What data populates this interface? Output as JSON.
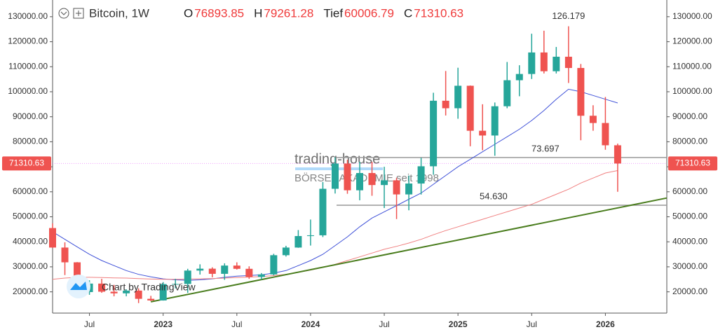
{
  "chart_data": {
    "type": "candlestick",
    "symbol": "Bitcoin, 1W",
    "header": [
      {
        "label": "O",
        "value": 76893.85
      },
      {
        "label": "H",
        "value": 79261.28
      },
      {
        "label": "Tief",
        "value": 60006.79
      },
      {
        "label": "C",
        "value": 71310.63
      }
    ],
    "watermark": [
      "trading-house",
      "BÖRSENAKADEMIE seit 1998"
    ],
    "credit": "Chart by TradingView",
    "dates": [
      "2022-04",
      "2022-05",
      "2022-06",
      "2022-07",
      "2022-08",
      "2022-09",
      "2022-10",
      "2022-11",
      "2022-12",
      "2023-01",
      "2023-02",
      "2023-03",
      "2023-04",
      "2023-05",
      "2023-06",
      "2023-07",
      "2023-08",
      "2023-09",
      "2023-10",
      "2023-11",
      "2023-12",
      "2024-01",
      "2024-02",
      "2024-03",
      "2024-04",
      "2024-05",
      "2024-06",
      "2024-07",
      "2024-08",
      "2024-09",
      "2024-10",
      "2024-11",
      "2024-12",
      "2025-01",
      "2025-02",
      "2025-03",
      "2025-04",
      "2025-05",
      "2025-06",
      "2025-07",
      "2025-08",
      "2025-09",
      "2025-10",
      "2025-11",
      "2025-12",
      "2026-01",
      "2026-02"
    ],
    "open": [
      45500,
      37700,
      31800,
      19900,
      23300,
      20050,
      19400,
      20500,
      17200,
      16550,
      23100,
      23150,
      28500,
      29250,
      27200,
      30500,
      29200,
      25950,
      26970,
      34650,
      37700,
      42300,
      42600,
      61200,
      71300,
      60600,
      67500,
      62700,
      64600,
      58950,
      63300,
      70200,
      96400,
      93400,
      102400,
      84400,
      82500,
      94200,
      104600,
      107100,
      115700,
      108200,
      114000,
      109500,
      90400,
      87500,
      78600
    ],
    "high": [
      47400,
      39800,
      31900,
      24600,
      25200,
      22800,
      21000,
      21400,
      18400,
      23900,
      25200,
      29200,
      31000,
      29800,
      31400,
      31800,
      30200,
      27500,
      35200,
      38400,
      44700,
      48900,
      63900,
      73800,
      72800,
      72000,
      72000,
      70000,
      65600,
      66500,
      73600,
      99600,
      108300,
      109600,
      102500,
      95000,
      95700,
      111900,
      110600,
      123200,
      124400,
      117900,
      126179,
      111100,
      94600,
      97900,
      79261.28
    ],
    "low": [
      37600,
      26700,
      17600,
      18800,
      19600,
      18200,
      18200,
      15500,
      16300,
      16500,
      21400,
      19600,
      26900,
      25800,
      24800,
      28900,
      25200,
      24900,
      26600,
      34100,
      37600,
      38500,
      41900,
      59300,
      59200,
      56600,
      58400,
      53500,
      49100,
      52600,
      58900,
      66800,
      90500,
      89200,
      78200,
      76600,
      74400,
      93400,
      98200,
      105100,
      107300,
      107300,
      103500,
      80600,
      84400,
      76800,
      60006.79
    ],
    "close": [
      37700,
      31800,
      19900,
      23300,
      20050,
      19400,
      20500,
      17200,
      16550,
      23100,
      23150,
      28500,
      29250,
      27200,
      30500,
      29200,
      25950,
      26970,
      34650,
      37700,
      42300,
      42600,
      61200,
      71300,
      60600,
      67500,
      62700,
      64600,
      58950,
      63300,
      70200,
      96400,
      93400,
      102400,
      84400,
      82500,
      94200,
      104600,
      107100,
      115700,
      108200,
      114000,
      109500,
      90400,
      87500,
      78600,
      71310.63
    ],
    "up_color": "#26a69a",
    "down_color": "#ef5350",
    "overlays": [
      {
        "color": "#3f51d8",
        "values": [
          44000,
          41000,
          38000,
          35000,
          32500,
          30500,
          28500,
          27000,
          26000,
          25200,
          24800,
          24600,
          24800,
          25200,
          25800,
          26300,
          26500,
          26800,
          27500,
          28500,
          30500,
          32500,
          35000,
          38500,
          42000,
          46000,
          49500,
          52000,
          54500,
          57000,
          59500,
          63000,
          66500,
          70000,
          73000,
          76000,
          79000,
          82000,
          85000,
          88500,
          92500,
          97000,
          101000,
          100000,
          98500,
          97000,
          95500
        ]
      },
      {
        "color": "#f08080",
        "values": [
          25000,
          25500,
          25800,
          25800,
          25700,
          25600,
          25500,
          25300,
          25100,
          25000,
          25000,
          25100,
          25200,
          25300,
          25500,
          25700,
          25900,
          26100,
          26500,
          27000,
          27800,
          28700,
          29800,
          31000,
          32500,
          34000,
          35500,
          37000,
          38200,
          39500,
          41000,
          42800,
          44500,
          46000,
          47500,
          49000,
          50500,
          52000,
          53500,
          55000,
          57000,
          59000,
          61000,
          63500,
          65500,
          67500,
          68500
        ]
      }
    ],
    "trendline": {
      "color": "#4a7d1e",
      "x": [
        "2022-12",
        "2026-06"
      ],
      "values": [
        16000,
        57500
      ]
    },
    "levels": [
      {
        "value": 73697,
        "label": "73.697"
      },
      {
        "value": 54630,
        "label": "54.630"
      }
    ],
    "high_annotation": {
      "x": "2025-10",
      "value": 126179,
      "label": "126.179"
    },
    "price_line": {
      "value": 71310.63,
      "color": "#e040fb"
    },
    "xlim": [
      "2022-04",
      "2026-06"
    ],
    "ylim": [
      11500,
      135000
    ],
    "yticks": [
      {
        "value": 20000,
        "label": "20000.00"
      },
      {
        "value": 30000,
        "label": "30000.00"
      },
      {
        "value": 40000,
        "label": "40000.00"
      },
      {
        "value": 50000,
        "label": "50000.00"
      },
      {
        "value": 60000,
        "label": "60000.00"
      },
      {
        "value": 70000,
        "label": "70000.00"
      },
      {
        "value": 80000,
        "label": "80000.00"
      },
      {
        "value": 90000,
        "label": "90000.00"
      },
      {
        "value": 100000,
        "label": "100000.00"
      },
      {
        "value": 110000,
        "label": "110000.00"
      },
      {
        "value": 120000,
        "label": "120000.00"
      },
      {
        "value": 130000,
        "label": "130000.00"
      }
    ],
    "xticks": [
      {
        "value": "2022-07",
        "label": "Jul"
      },
      {
        "value": "2023-01",
        "label": "2023"
      },
      {
        "value": "2023-07",
        "label": "Jul"
      },
      {
        "value": "2024-01",
        "label": "2024"
      },
      {
        "value": "2024-07",
        "label": "Jul"
      },
      {
        "value": "2025-01",
        "label": "2025"
      },
      {
        "value": "2025-07",
        "label": "Jul"
      },
      {
        "value": "2026-01",
        "label": "2026"
      }
    ]
  }
}
